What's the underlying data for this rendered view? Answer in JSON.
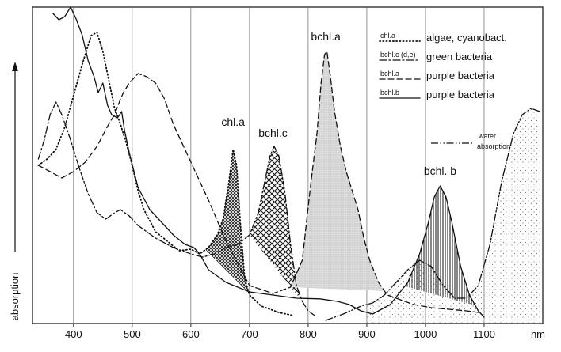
{
  "chart_data": {
    "type": "line",
    "title": "",
    "xlabel": "",
    "x_unit": "nm",
    "ylabel": "absorption",
    "xlim": [
      330,
      1200
    ],
    "ylim": [
      0,
      1
    ],
    "x_ticks": [
      400,
      500,
      600,
      700,
      800,
      900,
      1000,
      1100
    ],
    "grid": "vertical",
    "legend_position": "top-right",
    "legend": [
      {
        "code": "chl.a",
        "text": "algae, cyanobact.",
        "style": "dotted"
      },
      {
        "code": "bchl.c (d,e)",
        "text": "green bacteria",
        "style": "dashdot"
      },
      {
        "code": "bchl.a",
        "text": "purple bacteria",
        "style": "dashed"
      },
      {
        "code": "bchl.b",
        "text": "purple bacteria",
        "style": "solid"
      }
    ],
    "water_legend": {
      "line1": "water",
      "line2": "absorption",
      "style": "dashdotdot"
    },
    "peak_labels": [
      {
        "text": "chl.a",
        "x": 672,
        "y": 0.625
      },
      {
        "text": "bchl.c",
        "x": 740,
        "y": 0.59
      },
      {
        "text": "bchl.a",
        "x": 830,
        "y": 0.895
      },
      {
        "text": "bchl. b",
        "x": 1025,
        "y": 0.47
      }
    ],
    "series": [
      {
        "style": "dotted",
        "points": [
          [
            340,
            0.5
          ],
          [
            355,
            0.52
          ],
          [
            370,
            0.55
          ],
          [
            385,
            0.62
          ],
          [
            400,
            0.72
          ],
          [
            415,
            0.82
          ],
          [
            430,
            0.91
          ],
          [
            440,
            0.92
          ],
          [
            450,
            0.86
          ],
          [
            460,
            0.77
          ],
          [
            470,
            0.68
          ],
          [
            480,
            0.63
          ],
          [
            490,
            0.57
          ],
          [
            500,
            0.5
          ],
          [
            510,
            0.42
          ],
          [
            520,
            0.36
          ],
          [
            540,
            0.29
          ],
          [
            560,
            0.26
          ],
          [
            580,
            0.23
          ],
          [
            600,
            0.235
          ],
          [
            615,
            0.22
          ],
          [
            630,
            0.24
          ],
          [
            645,
            0.28
          ],
          [
            655,
            0.33
          ],
          [
            665,
            0.45
          ],
          [
            672,
            0.55
          ],
          [
            678,
            0.5
          ],
          [
            685,
            0.3
          ],
          [
            692,
            0.14
          ],
          [
            700,
            0.09
          ],
          [
            720,
            0.055
          ],
          [
            750,
            0.035
          ],
          [
            775,
            0.025
          ]
        ]
      },
      {
        "style": "dashdot",
        "points": [
          [
            340,
            0.52
          ],
          [
            350,
            0.58
          ],
          [
            360,
            0.66
          ],
          [
            370,
            0.7
          ],
          [
            380,
            0.66
          ],
          [
            395,
            0.58
          ],
          [
            410,
            0.49
          ],
          [
            425,
            0.41
          ],
          [
            440,
            0.35
          ],
          [
            455,
            0.33
          ],
          [
            470,
            0.35
          ],
          [
            480,
            0.36
          ],
          [
            495,
            0.34
          ],
          [
            510,
            0.31
          ],
          [
            540,
            0.27
          ],
          [
            570,
            0.24
          ],
          [
            600,
            0.22
          ],
          [
            620,
            0.21
          ],
          [
            640,
            0.22
          ],
          [
            660,
            0.24
          ],
          [
            680,
            0.25
          ],
          [
            700,
            0.28
          ],
          [
            715,
            0.35
          ],
          [
            725,
            0.44
          ],
          [
            735,
            0.53
          ],
          [
            742,
            0.56
          ],
          [
            750,
            0.53
          ],
          [
            760,
            0.42
          ],
          [
            770,
            0.25
          ],
          [
            780,
            0.12
          ],
          [
            790,
            0.07
          ],
          [
            800,
            0.04
          ],
          [
            815,
            0.02
          ]
        ]
      },
      {
        "style": "dashed",
        "points": [
          [
            340,
            0.5
          ],
          [
            360,
            0.48
          ],
          [
            380,
            0.46
          ],
          [
            400,
            0.48
          ],
          [
            420,
            0.51
          ],
          [
            440,
            0.56
          ],
          [
            460,
            0.63
          ],
          [
            470,
            0.66
          ],
          [
            478,
            0.7
          ],
          [
            485,
            0.73
          ],
          [
            495,
            0.76
          ],
          [
            510,
            0.79
          ],
          [
            525,
            0.78
          ],
          [
            540,
            0.76
          ],
          [
            555,
            0.71
          ],
          [
            570,
            0.63
          ],
          [
            590,
            0.55
          ],
          [
            610,
            0.47
          ],
          [
            630,
            0.39
          ],
          [
            660,
            0.26
          ],
          [
            700,
            0.12
          ],
          [
            740,
            0.095
          ],
          [
            770,
            0.115
          ],
          [
            790,
            0.2
          ],
          [
            805,
            0.45
          ],
          [
            815,
            0.6
          ],
          [
            822,
            0.76
          ],
          [
            828,
            0.85
          ],
          [
            832,
            0.86
          ],
          [
            838,
            0.78
          ],
          [
            845,
            0.67
          ],
          [
            855,
            0.56
          ],
          [
            865,
            0.48
          ],
          [
            875,
            0.42
          ],
          [
            885,
            0.36
          ],
          [
            895,
            0.27
          ],
          [
            905,
            0.2
          ],
          [
            920,
            0.13
          ],
          [
            935,
            0.09
          ],
          [
            950,
            0.08
          ],
          [
            980,
            0.06
          ],
          [
            1010,
            0.05
          ],
          [
            1040,
            0.045
          ],
          [
            1070,
            0.04
          ],
          [
            1090,
            0.035
          ]
        ]
      },
      {
        "style": "solid",
        "points": [
          [
            365,
            0.98
          ],
          [
            375,
            0.96
          ],
          [
            385,
            0.97
          ],
          [
            395,
            1.0
          ],
          [
            405,
            0.96
          ],
          [
            415,
            0.91
          ],
          [
            425,
            0.83
          ],
          [
            435,
            0.78
          ],
          [
            442,
            0.73
          ],
          [
            450,
            0.76
          ],
          [
            458,
            0.69
          ],
          [
            465,
            0.66
          ],
          [
            475,
            0.65
          ],
          [
            482,
            0.67
          ],
          [
            487,
            0.61
          ],
          [
            495,
            0.54
          ],
          [
            510,
            0.43
          ],
          [
            530,
            0.36
          ],
          [
            550,
            0.32
          ],
          [
            570,
            0.28
          ],
          [
            590,
            0.25
          ],
          [
            605,
            0.24
          ],
          [
            615,
            0.22
          ],
          [
            630,
            0.17
          ],
          [
            660,
            0.13
          ],
          [
            700,
            0.1
          ],
          [
            740,
            0.09
          ],
          [
            780,
            0.08
          ],
          [
            820,
            0.078
          ],
          [
            850,
            0.07
          ],
          [
            870,
            0.06
          ],
          [
            890,
            0.04
          ],
          [
            910,
            0.03
          ],
          [
            940,
            0.06
          ],
          [
            970,
            0.13
          ],
          [
            990,
            0.22
          ],
          [
            1005,
            0.32
          ],
          [
            1015,
            0.4
          ],
          [
            1025,
            0.435
          ],
          [
            1035,
            0.4
          ],
          [
            1045,
            0.32
          ],
          [
            1060,
            0.18
          ],
          [
            1075,
            0.09
          ],
          [
            1090,
            0.04
          ],
          [
            1100,
            0.02
          ]
        ]
      },
      {
        "style": "dashdotdot",
        "points": [
          [
            830,
            0.01
          ],
          [
            860,
            0.03
          ],
          [
            890,
            0.055
          ],
          [
            910,
            0.065
          ],
          [
            930,
            0.09
          ],
          [
            950,
            0.13
          ],
          [
            970,
            0.17
          ],
          [
            990,
            0.2
          ],
          [
            1010,
            0.18
          ],
          [
            1030,
            0.12
          ],
          [
            1050,
            0.08
          ],
          [
            1070,
            0.08
          ],
          [
            1090,
            0.12
          ],
          [
            1110,
            0.25
          ],
          [
            1130,
            0.45
          ],
          [
            1150,
            0.6
          ],
          [
            1165,
            0.66
          ],
          [
            1180,
            0.68
          ],
          [
            1195,
            0.67
          ]
        ]
      }
    ],
    "fills": [
      {
        "series_index": 0,
        "from": 625,
        "to": 700,
        "pattern": "crosshatch-fine"
      },
      {
        "series_index": 1,
        "from": 700,
        "to": 790,
        "pattern": "crosshatch"
      },
      {
        "series_index": 2,
        "from": 770,
        "to": 930,
        "pattern": "gray-stipple"
      },
      {
        "series_index": 3,
        "from": 965,
        "to": 1085,
        "pattern": "vertical-lines"
      },
      {
        "series_index": 4,
        "from": 900,
        "to": 1195,
        "pattern": "sparse-dots"
      }
    ]
  }
}
